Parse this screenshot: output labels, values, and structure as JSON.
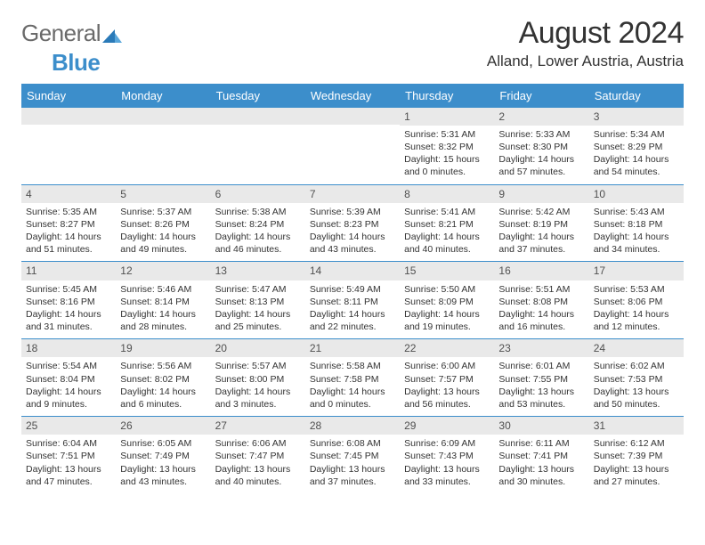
{
  "brand": {
    "part1": "General",
    "part2": "Blue"
  },
  "title": "August 2024",
  "location": "Alland, Lower Austria, Austria",
  "colors": {
    "accent": "#3c8ecb",
    "header_bg": "#3c8ecb",
    "daynum_bg": "#e9e9e9",
    "text": "#333333",
    "logo_gray": "#6a6a6a"
  },
  "day_names": [
    "Sunday",
    "Monday",
    "Tuesday",
    "Wednesday",
    "Thursday",
    "Friday",
    "Saturday"
  ],
  "weeks": [
    [
      null,
      null,
      null,
      null,
      {
        "n": "1",
        "sr": "5:31 AM",
        "ss": "8:32 PM",
        "dl": "15 hours and 0 minutes."
      },
      {
        "n": "2",
        "sr": "5:33 AM",
        "ss": "8:30 PM",
        "dl": "14 hours and 57 minutes."
      },
      {
        "n": "3",
        "sr": "5:34 AM",
        "ss": "8:29 PM",
        "dl": "14 hours and 54 minutes."
      }
    ],
    [
      {
        "n": "4",
        "sr": "5:35 AM",
        "ss": "8:27 PM",
        "dl": "14 hours and 51 minutes."
      },
      {
        "n": "5",
        "sr": "5:37 AM",
        "ss": "8:26 PM",
        "dl": "14 hours and 49 minutes."
      },
      {
        "n": "6",
        "sr": "5:38 AM",
        "ss": "8:24 PM",
        "dl": "14 hours and 46 minutes."
      },
      {
        "n": "7",
        "sr": "5:39 AM",
        "ss": "8:23 PM",
        "dl": "14 hours and 43 minutes."
      },
      {
        "n": "8",
        "sr": "5:41 AM",
        "ss": "8:21 PM",
        "dl": "14 hours and 40 minutes."
      },
      {
        "n": "9",
        "sr": "5:42 AM",
        "ss": "8:19 PM",
        "dl": "14 hours and 37 minutes."
      },
      {
        "n": "10",
        "sr": "5:43 AM",
        "ss": "8:18 PM",
        "dl": "14 hours and 34 minutes."
      }
    ],
    [
      {
        "n": "11",
        "sr": "5:45 AM",
        "ss": "8:16 PM",
        "dl": "14 hours and 31 minutes."
      },
      {
        "n": "12",
        "sr": "5:46 AM",
        "ss": "8:14 PM",
        "dl": "14 hours and 28 minutes."
      },
      {
        "n": "13",
        "sr": "5:47 AM",
        "ss": "8:13 PM",
        "dl": "14 hours and 25 minutes."
      },
      {
        "n": "14",
        "sr": "5:49 AM",
        "ss": "8:11 PM",
        "dl": "14 hours and 22 minutes."
      },
      {
        "n": "15",
        "sr": "5:50 AM",
        "ss": "8:09 PM",
        "dl": "14 hours and 19 minutes."
      },
      {
        "n": "16",
        "sr": "5:51 AM",
        "ss": "8:08 PM",
        "dl": "14 hours and 16 minutes."
      },
      {
        "n": "17",
        "sr": "5:53 AM",
        "ss": "8:06 PM",
        "dl": "14 hours and 12 minutes."
      }
    ],
    [
      {
        "n": "18",
        "sr": "5:54 AM",
        "ss": "8:04 PM",
        "dl": "14 hours and 9 minutes."
      },
      {
        "n": "19",
        "sr": "5:56 AM",
        "ss": "8:02 PM",
        "dl": "14 hours and 6 minutes."
      },
      {
        "n": "20",
        "sr": "5:57 AM",
        "ss": "8:00 PM",
        "dl": "14 hours and 3 minutes."
      },
      {
        "n": "21",
        "sr": "5:58 AM",
        "ss": "7:58 PM",
        "dl": "14 hours and 0 minutes."
      },
      {
        "n": "22",
        "sr": "6:00 AM",
        "ss": "7:57 PM",
        "dl": "13 hours and 56 minutes."
      },
      {
        "n": "23",
        "sr": "6:01 AM",
        "ss": "7:55 PM",
        "dl": "13 hours and 53 minutes."
      },
      {
        "n": "24",
        "sr": "6:02 AM",
        "ss": "7:53 PM",
        "dl": "13 hours and 50 minutes."
      }
    ],
    [
      {
        "n": "25",
        "sr": "6:04 AM",
        "ss": "7:51 PM",
        "dl": "13 hours and 47 minutes."
      },
      {
        "n": "26",
        "sr": "6:05 AM",
        "ss": "7:49 PM",
        "dl": "13 hours and 43 minutes."
      },
      {
        "n": "27",
        "sr": "6:06 AM",
        "ss": "7:47 PM",
        "dl": "13 hours and 40 minutes."
      },
      {
        "n": "28",
        "sr": "6:08 AM",
        "ss": "7:45 PM",
        "dl": "13 hours and 37 minutes."
      },
      {
        "n": "29",
        "sr": "6:09 AM",
        "ss": "7:43 PM",
        "dl": "13 hours and 33 minutes."
      },
      {
        "n": "30",
        "sr": "6:11 AM",
        "ss": "7:41 PM",
        "dl": "13 hours and 30 minutes."
      },
      {
        "n": "31",
        "sr": "6:12 AM",
        "ss": "7:39 PM",
        "dl": "13 hours and 27 minutes."
      }
    ]
  ],
  "labels": {
    "sunrise": "Sunrise:",
    "sunset": "Sunset:",
    "daylight": "Daylight:"
  }
}
